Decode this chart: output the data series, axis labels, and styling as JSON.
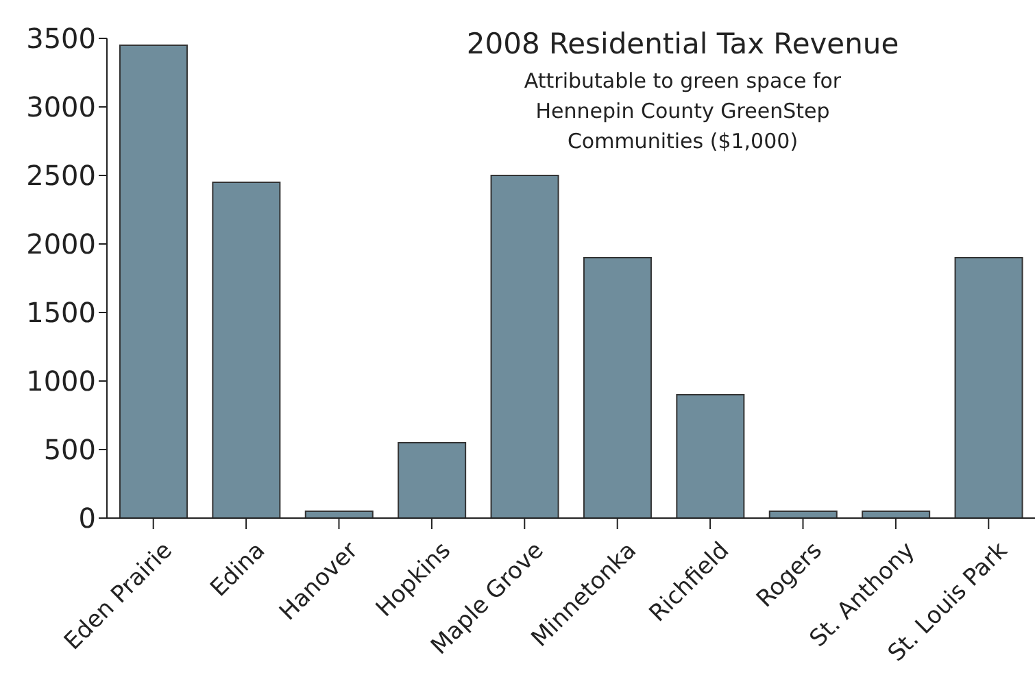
{
  "chart_data": {
    "type": "bar",
    "title": "2008 Residential Tax Revenue",
    "subtitle": "Attributable to green space for Hennepin County GreenStep Communities ($1,000)",
    "categories": [
      "Eden Prairie",
      "Edina",
      "Hanover",
      "Hopkins",
      "Maple Grove",
      "Minnetonka",
      "Richfield",
      "Rogers",
      "St. Anthony",
      "St. Louis Park"
    ],
    "values": [
      3450,
      2450,
      50,
      550,
      2500,
      1900,
      900,
      50,
      50,
      1900
    ],
    "color": "#6f8d9c",
    "ylim": [
      0,
      3500
    ],
    "yticks": [
      0,
      500,
      1000,
      1500,
      2000,
      2500,
      3000,
      3500
    ],
    "grid": false
  }
}
